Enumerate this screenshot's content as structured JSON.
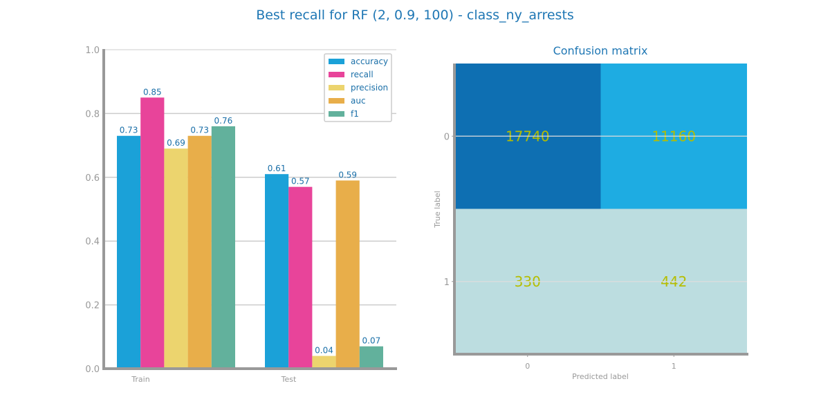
{
  "figure": {
    "title": "Best recall for RF (2, 0.9, 100) - class_ny_arrests"
  },
  "colors": {
    "title": "#1f77b4",
    "axis": "#999999",
    "grid": "#cccccc",
    "label": "#1a6fa8",
    "accuracy": "#1ba1d8",
    "recall": "#e8449a",
    "precision": "#ecd46e",
    "auc": "#e8ae4a",
    "f1": "#62b19c",
    "cm_high": "#0e6fb2",
    "cm_mid": "#1eace2",
    "cm_low": "#bcdde0",
    "cm_text": "#b5bd00"
  },
  "chart_data": [
    {
      "type": "bar",
      "categories": [
        "Train",
        "Test"
      ],
      "series": [
        {
          "name": "accuracy",
          "values": [
            0.73,
            0.61
          ],
          "labels": [
            "0.73",
            "0.61"
          ]
        },
        {
          "name": "recall",
          "values": [
            0.85,
            0.57
          ],
          "labels": [
            "0.85",
            "0.57"
          ]
        },
        {
          "name": "precision",
          "values": [
            0.69,
            0.04
          ],
          "labels": [
            "0.69",
            "0.04"
          ]
        },
        {
          "name": "auc",
          "values": [
            0.73,
            0.59
          ],
          "labels": [
            "0.73",
            "0.59"
          ]
        },
        {
          "name": "f1",
          "values": [
            0.76,
            0.07
          ],
          "labels": [
            "0.76",
            "0.07"
          ]
        }
      ],
      "yticks": [
        "0.0",
        "0.2",
        "0.4",
        "0.6",
        "0.8",
        "1.0"
      ],
      "ylim": [
        0,
        1
      ],
      "grid": true,
      "legend": "top-right"
    },
    {
      "type": "heatmap",
      "title": "Confusion matrix",
      "xlabel": "Predicted label",
      "ylabel": "True label",
      "xticks": [
        "0",
        "1"
      ],
      "yticks": [
        "0",
        "1"
      ],
      "cells": [
        [
          "17740",
          "11160"
        ],
        [
          "330",
          "442"
        ]
      ],
      "values": [
        [
          17740,
          11160
        ],
        [
          330,
          442
        ]
      ]
    }
  ]
}
